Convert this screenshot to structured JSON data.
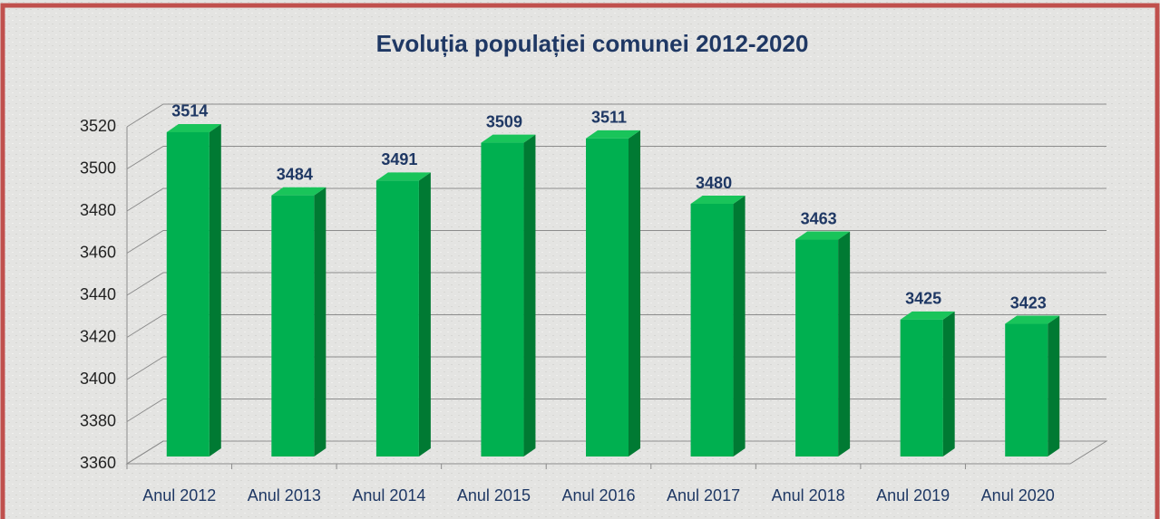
{
  "chart_data": {
    "type": "bar3d",
    "title": "Evoluția populației comunei 2012-2020",
    "categories": [
      "Anul 2012",
      "Anul 2013",
      "Anul 2014",
      "Anul 2015",
      "Anul 2016",
      "Anul 2017",
      "Anul 2018",
      "Anul 2019",
      "Anul 2020"
    ],
    "values": [
      3514,
      3484,
      3491,
      3509,
      3511,
      3480,
      3463,
      3425,
      3423
    ],
    "color": "#00b050",
    "ylim": [
      3360,
      3520
    ],
    "yticks": [
      3360,
      3380,
      3400,
      3420,
      3440,
      3460,
      3480,
      3500,
      3520
    ],
    "grid": true
  }
}
